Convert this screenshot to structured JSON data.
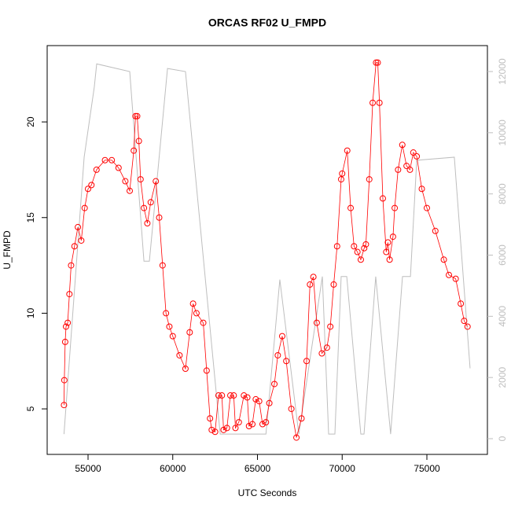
{
  "chart_data": {
    "type": "scatter",
    "title": "ORCAS RF02 U_FMPD",
    "x_label": "UTC Seconds",
    "y_label": "U_FMPD",
    "xlim": [
      52587,
      78573
    ],
    "ylim": [
      2.62,
      23.99
    ],
    "y2lim": [
      -514,
      12848
    ],
    "xticks": [
      55000,
      60000,
      65000,
      70000,
      75000
    ],
    "yticks": [
      5,
      10,
      15,
      20
    ],
    "y2ticks": [
      0,
      2000,
      4000,
      6000,
      8000,
      10000,
      12000
    ],
    "series": [
      {
        "name": "U_FMPD",
        "color": "#ff0000",
        "x": [
          53580,
          53600,
          53650,
          53700,
          53800,
          53900,
          54000,
          54200,
          54400,
          54600,
          54800,
          55000,
          55200,
          55500,
          56000,
          56400,
          56800,
          57200,
          57460,
          57700,
          57800,
          57900,
          58000,
          58100,
          58300,
          58500,
          58700,
          59000,
          59200,
          59400,
          59600,
          59800,
          60000,
          60400,
          60750,
          61000,
          61200,
          61400,
          61800,
          62000,
          62200,
          62300,
          62500,
          62700,
          62900,
          63000,
          63200,
          63400,
          63600,
          63700,
          63900,
          64200,
          64400,
          64500,
          64700,
          64900,
          65100,
          65300,
          65500,
          65700,
          66000,
          66200,
          66460,
          66700,
          67000,
          67300,
          67600,
          67900,
          68100,
          68300,
          68500,
          68800,
          69100,
          69300,
          69500,
          69700,
          69940,
          70000,
          70300,
          70500,
          70700,
          70900,
          71100,
          71300,
          71400,
          71600,
          71800,
          72000,
          72100,
          72200,
          72400,
          72600,
          72700,
          72800,
          73000,
          73100,
          73300,
          73550,
          73800,
          74000,
          74200,
          74400,
          74700,
          75000,
          75500,
          76000,
          76300,
          76700,
          77000,
          77200,
          77400
        ],
        "values": [
          5.2,
          6.5,
          8.5,
          9.3,
          9.5,
          11,
          12.5,
          13.5,
          14.5,
          13.8,
          15.5,
          16.5,
          16.7,
          17.5,
          18,
          18,
          17.6,
          16.9,
          16.4,
          18.5,
          20.3,
          20.3,
          19,
          17,
          15.5,
          14.7,
          15.8,
          16.9,
          15,
          12.5,
          10,
          9.3,
          8.8,
          7.8,
          7.1,
          9,
          10.5,
          10,
          9.5,
          7,
          4.5,
          3.9,
          3.8,
          5.7,
          5.7,
          3.9,
          4,
          5.7,
          5.7,
          4,
          4.3,
          5.7,
          5.6,
          4.1,
          4.2,
          5.5,
          5.4,
          4.2,
          4.3,
          5.3,
          6.3,
          7.8,
          8.8,
          7.5,
          5,
          3.5,
          4.5,
          7.5,
          11.5,
          11.9,
          9.5,
          7.9,
          8.2,
          9.3,
          11.5,
          13.5,
          17,
          17.3,
          18.5,
          15.5,
          13.5,
          13.2,
          12.8,
          13.4,
          13.6,
          17,
          21,
          23.1,
          23.1,
          21,
          16,
          13.2,
          13.7,
          12.8,
          14,
          15.5,
          17.5,
          18.8,
          17.7,
          17.5,
          18.4,
          18.2,
          16.5,
          15.5,
          14.3,
          12.8,
          12,
          11.8,
          10.5,
          9.6,
          9.3
        ]
      },
      {
        "color": "#bebebe",
        "axis": "y2",
        "x": [
          53580,
          54770,
          55370,
          55510,
          57460,
          58300,
          58620,
          59690,
          60750,
          62800,
          64000,
          65500,
          66320,
          67440,
          68830,
          69200,
          69570,
          69940,
          70270,
          71100,
          71290,
          71980,
          72860,
          73560,
          74030,
          74400,
          76620,
          77550
        ],
        "values": [
          150,
          9200,
          11500,
          12250,
          12000,
          5800,
          5800,
          12100,
          12000,
          150,
          150,
          150,
          5200,
          150,
          5300,
          150,
          150,
          5300,
          5300,
          150,
          150,
          5300,
          150,
          5300,
          5300,
          9100,
          9200,
          2300
        ]
      }
    ]
  }
}
